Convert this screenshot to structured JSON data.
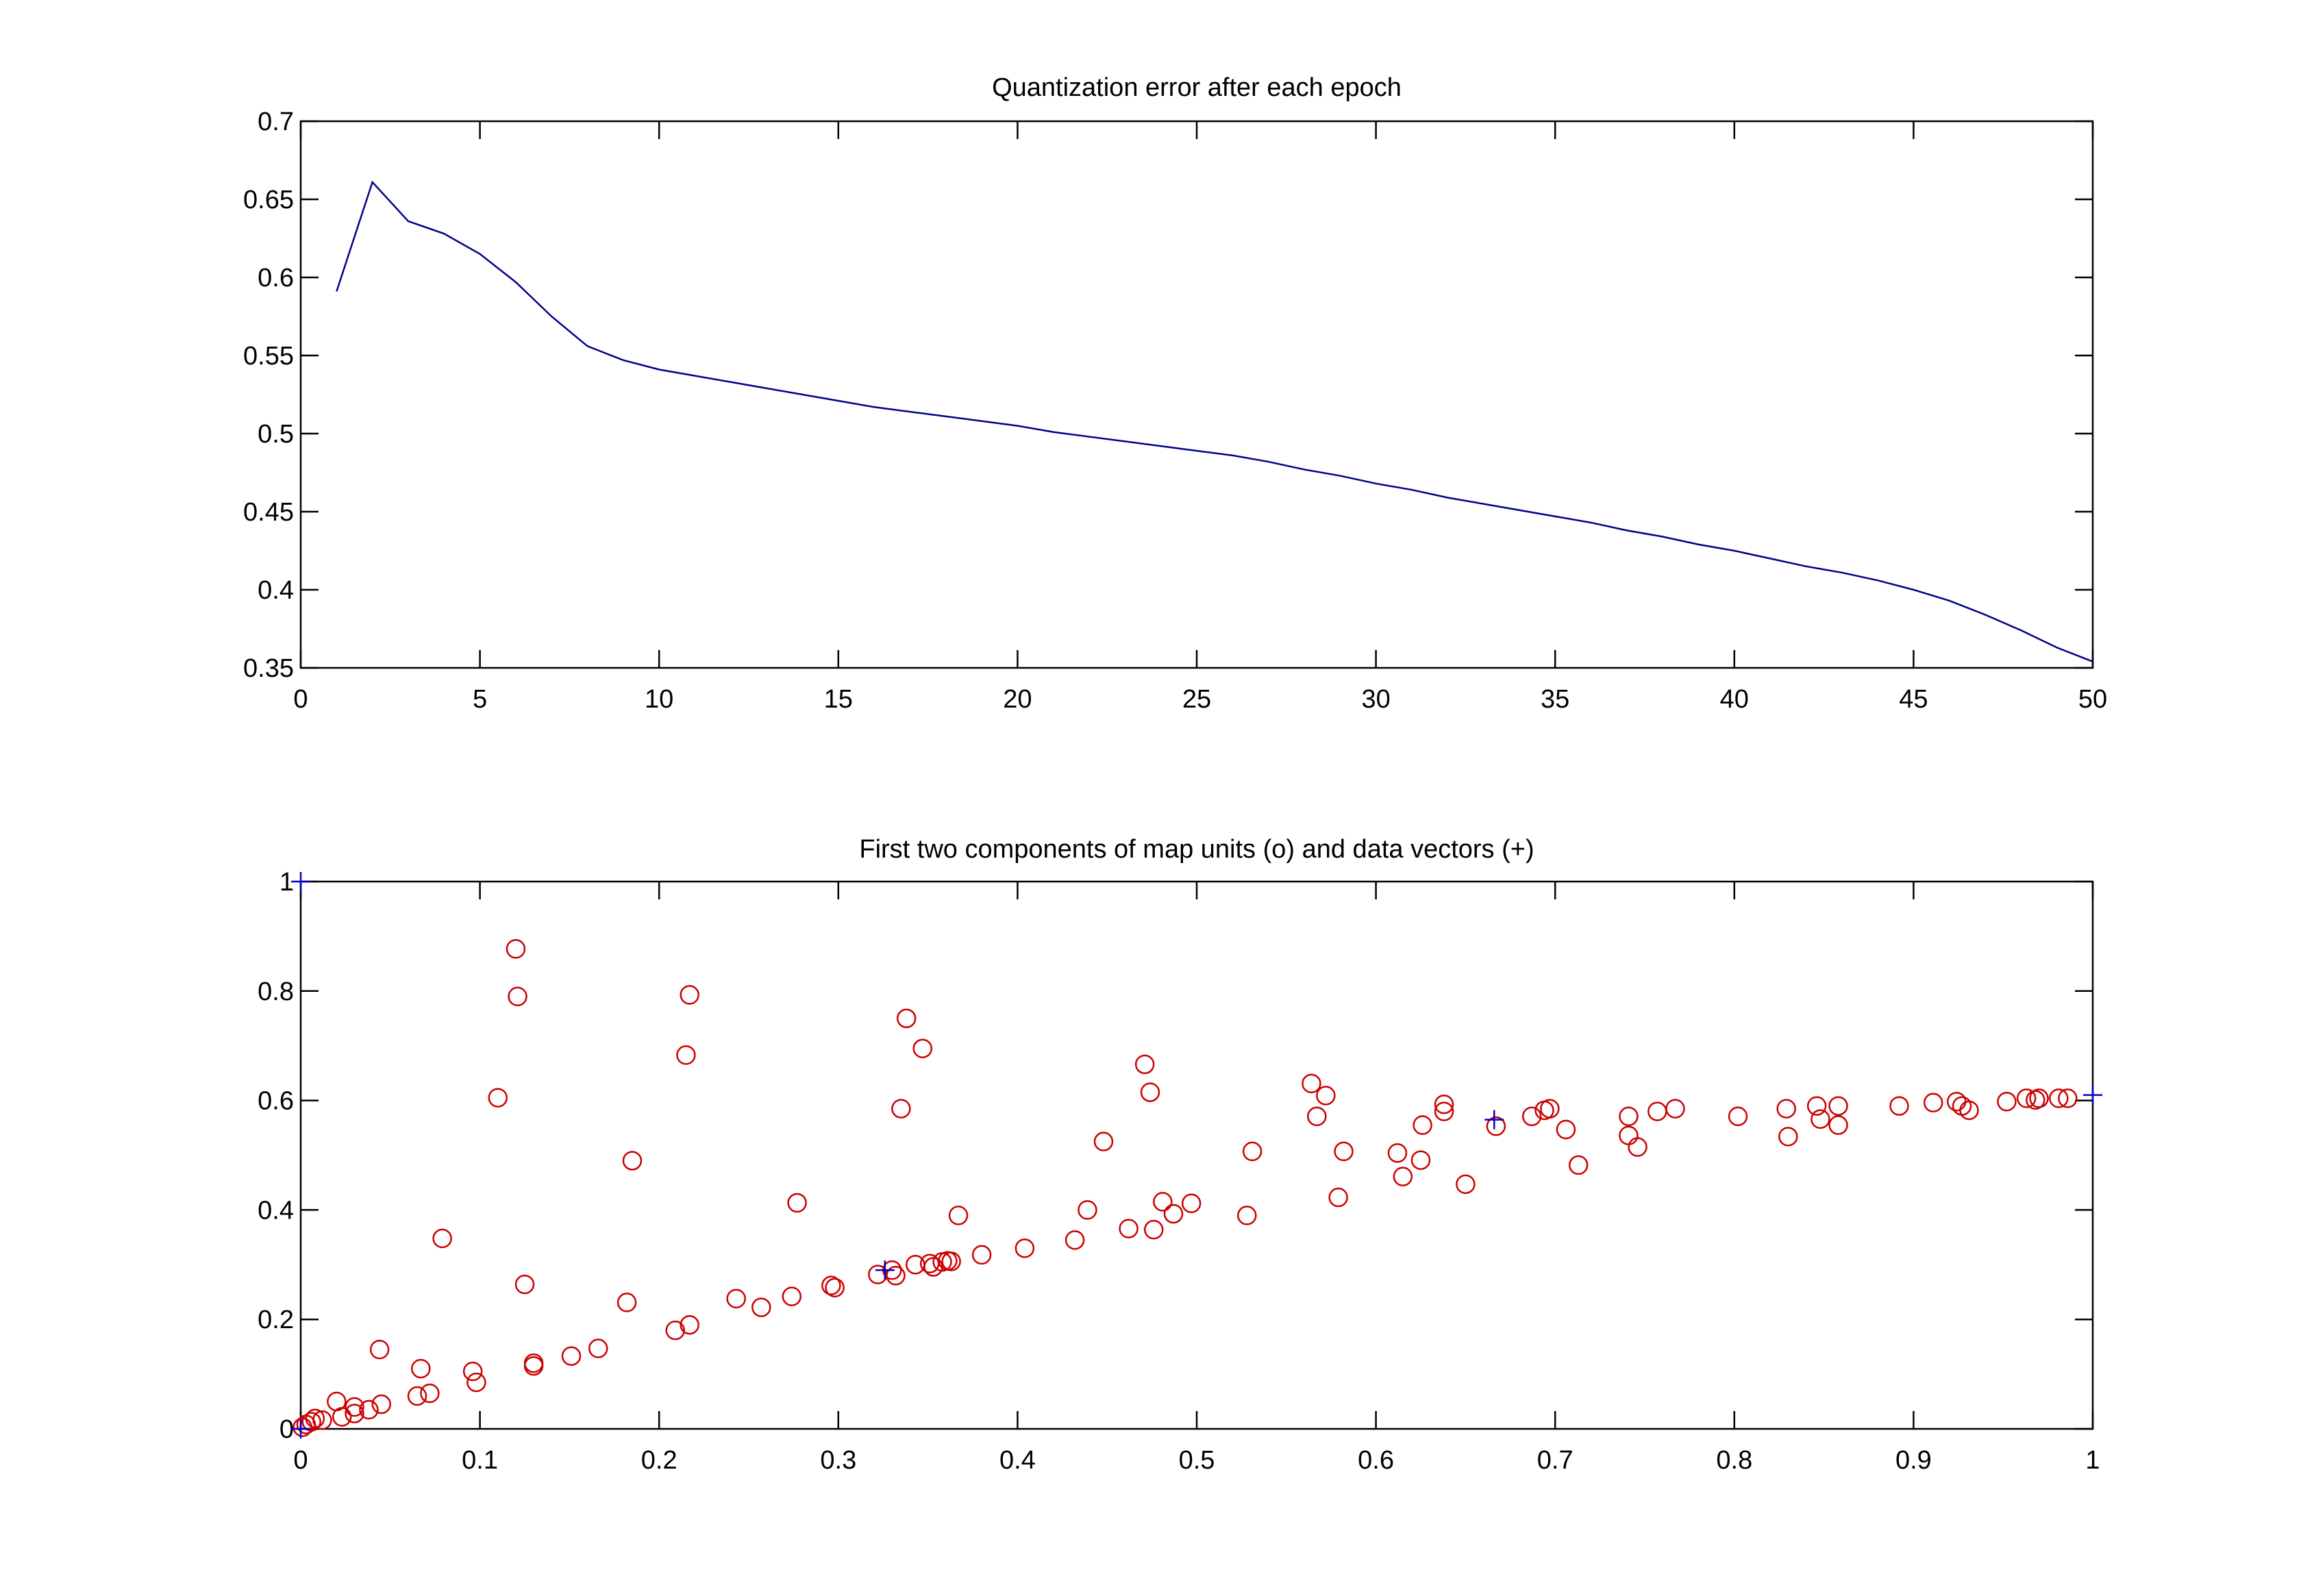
{
  "chart_data": [
    {
      "type": "line",
      "title": "Quantization error after each epoch",
      "xlabel": "",
      "ylabel": "",
      "xlim": [
        0,
        50
      ],
      "ylim": [
        0.35,
        0.7
      ],
      "xticks": [
        "0",
        "5",
        "10",
        "15",
        "20",
        "25",
        "30",
        "35",
        "40",
        "45",
        "50"
      ],
      "yticks": [
        "0.35",
        "0.4",
        "0.45",
        "0.5",
        "0.55",
        "0.6",
        "0.65",
        "0.7"
      ],
      "grid": false,
      "color": "#00008b",
      "x": [
        1,
        2,
        3,
        4,
        5,
        6,
        7,
        8,
        9,
        10,
        11,
        12,
        13,
        14,
        15,
        16,
        17,
        18,
        19,
        20,
        21,
        22,
        23,
        24,
        25,
        26,
        27,
        28,
        29,
        30,
        31,
        32,
        33,
        34,
        35,
        36,
        37,
        38,
        39,
        40,
        41,
        42,
        43,
        44,
        45,
        46,
        47,
        48,
        49,
        50
      ],
      "y": [
        0.591,
        0.661,
        0.636,
        0.628,
        0.615,
        0.597,
        0.575,
        0.556,
        0.547,
        0.541,
        0.537,
        0.533,
        0.529,
        0.525,
        0.521,
        0.517,
        0.514,
        0.511,
        0.508,
        0.505,
        0.501,
        0.498,
        0.495,
        0.492,
        0.489,
        0.486,
        0.482,
        0.477,
        0.473,
        0.468,
        0.464,
        0.459,
        0.455,
        0.451,
        0.447,
        0.443,
        0.438,
        0.434,
        0.429,
        0.425,
        0.42,
        0.415,
        0.411,
        0.406,
        0.4,
        0.393,
        0.384,
        0.374,
        0.363,
        0.354
      ]
    },
    {
      "type": "scatter",
      "title": "First two components of map units (o) and data vectors (+)",
      "xlabel": "",
      "ylabel": "",
      "xlim": [
        0,
        1
      ],
      "ylim": [
        0,
        1
      ],
      "xticks": [
        "0",
        "0.1",
        "0.2",
        "0.3",
        "0.4",
        "0.5",
        "0.6",
        "0.7",
        "0.8",
        "0.9",
        "1"
      ],
      "yticks": [
        "0",
        "0.2",
        "0.4",
        "0.6",
        "0.8",
        "1"
      ],
      "grid": false,
      "series": [
        {
          "marker": "o",
          "color": "#cc0000",
          "points": [
            [
              0.001,
              0.003
            ],
            [
              0.003,
              0.008
            ],
            [
              0.006,
              0.013
            ],
            [
              0.008,
              0.019
            ],
            [
              0.012,
              0.016
            ],
            [
              0.02,
              0.05
            ],
            [
              0.023,
              0.022
            ],
            [
              0.03,
              0.04
            ],
            [
              0.03,
              0.028
            ],
            [
              0.038,
              0.035
            ],
            [
              0.045,
              0.045
            ],
            [
              0.044,
              0.145
            ],
            [
              0.065,
              0.06
            ],
            [
              0.067,
              0.11
            ],
            [
              0.072,
              0.065
            ],
            [
              0.079,
              0.348
            ],
            [
              0.096,
              0.105
            ],
            [
              0.098,
              0.085
            ],
            [
              0.11,
              0.605
            ],
            [
              0.12,
              0.877
            ],
            [
              0.121,
              0.79
            ],
            [
              0.125,
              0.264
            ],
            [
              0.13,
              0.12
            ],
            [
              0.13,
              0.115
            ],
            [
              0.151,
              0.133
            ],
            [
              0.166,
              0.147
            ],
            [
              0.182,
              0.231
            ],
            [
              0.185,
              0.49
            ],
            [
              0.209,
              0.18
            ],
            [
              0.215,
              0.683
            ],
            [
              0.217,
              0.793
            ],
            [
              0.217,
              0.19
            ],
            [
              0.243,
              0.238
            ],
            [
              0.257,
              0.222
            ],
            [
              0.274,
              0.242
            ],
            [
              0.277,
              0.413
            ],
            [
              0.296,
              0.262
            ],
            [
              0.298,
              0.258
            ],
            [
              0.322,
              0.282
            ],
            [
              0.33,
              0.29
            ],
            [
              0.332,
              0.28
            ],
            [
              0.335,
              0.585
            ],
            [
              0.338,
              0.75
            ],
            [
              0.343,
              0.3
            ],
            [
              0.347,
              0.695
            ],
            [
              0.351,
              0.302
            ],
            [
              0.353,
              0.296
            ],
            [
              0.358,
              0.305
            ],
            [
              0.361,
              0.307
            ],
            [
              0.363,
              0.306
            ],
            [
              0.367,
              0.39
            ],
            [
              0.38,
              0.318
            ],
            [
              0.404,
              0.33
            ],
            [
              0.432,
              0.345
            ],
            [
              0.439,
              0.4
            ],
            [
              0.448,
              0.525
            ],
            [
              0.462,
              0.366
            ],
            [
              0.471,
              0.666
            ],
            [
              0.474,
              0.615
            ],
            [
              0.476,
              0.364
            ],
            [
              0.481,
              0.415
            ],
            [
              0.487,
              0.393
            ],
            [
              0.497,
              0.412
            ],
            [
              0.528,
              0.39
            ],
            [
              0.531,
              0.507
            ],
            [
              0.564,
              0.631
            ],
            [
              0.567,
              0.571
            ],
            [
              0.572,
              0.609
            ],
            [
              0.579,
              0.423
            ],
            [
              0.582,
              0.507
            ],
            [
              0.612,
              0.504
            ],
            [
              0.615,
              0.461
            ],
            [
              0.625,
              0.491
            ],
            [
              0.626,
              0.555
            ],
            [
              0.638,
              0.593
            ],
            [
              0.638,
              0.58
            ],
            [
              0.65,
              0.447
            ],
            [
              0.667,
              0.553
            ],
            [
              0.687,
              0.571
            ],
            [
              0.694,
              0.582
            ],
            [
              0.697,
              0.585
            ],
            [
              0.706,
              0.547
            ],
            [
              0.713,
              0.482
            ],
            [
              0.741,
              0.571
            ],
            [
              0.741,
              0.536
            ],
            [
              0.746,
              0.515
            ],
            [
              0.757,
              0.58
            ],
            [
              0.767,
              0.585
            ],
            [
              0.802,
              0.571
            ],
            [
              0.829,
              0.585
            ],
            [
              0.83,
              0.534
            ],
            [
              0.846,
              0.59
            ],
            [
              0.848,
              0.566
            ],
            [
              0.858,
              0.59
            ],
            [
              0.858,
              0.555
            ],
            [
              0.892,
              0.59
            ],
            [
              0.911,
              0.596
            ],
            [
              0.924,
              0.598
            ],
            [
              0.927,
              0.59
            ],
            [
              0.931,
              0.582
            ],
            [
              0.952,
              0.598
            ],
            [
              0.963,
              0.604
            ],
            [
              0.968,
              0.601
            ],
            [
              0.97,
              0.604
            ],
            [
              0.981,
              0.604
            ],
            [
              0.986,
              0.604
            ]
          ]
        },
        {
          "marker": "+",
          "color": "#0000cc",
          "points": [
            [
              0,
              1
            ],
            [
              0,
              0
            ],
            [
              0.326,
              0.29
            ],
            [
              0.666,
              0.565
            ],
            [
              1,
              0.61
            ]
          ]
        }
      ]
    }
  ]
}
